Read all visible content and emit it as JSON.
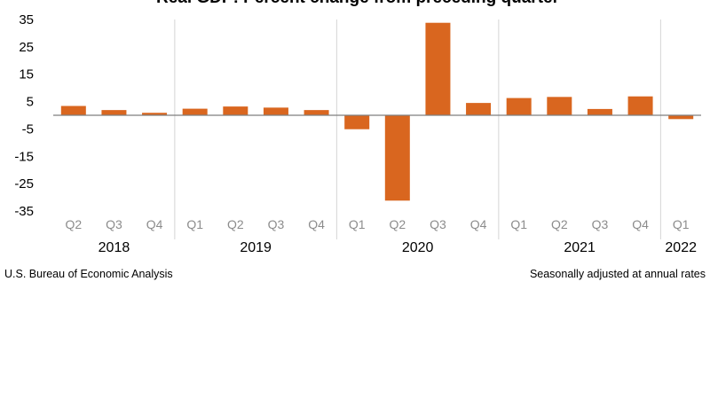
{
  "chart_data": {
    "type": "bar",
    "title": "Real GDP: Percent change from preceding quarter",
    "categories": [
      "Q2",
      "Q3",
      "Q4",
      "Q1",
      "Q2",
      "Q3",
      "Q4",
      "Q1",
      "Q2",
      "Q3",
      "Q4",
      "Q1",
      "Q2",
      "Q3",
      "Q4",
      "Q1"
    ],
    "years": [
      {
        "label": "2018",
        "start": 0,
        "end": 2
      },
      {
        "label": "2019",
        "start": 3,
        "end": 6
      },
      {
        "label": "2020",
        "start": 7,
        "end": 10
      },
      {
        "label": "2021",
        "start": 11,
        "end": 14
      },
      {
        "label": "2022",
        "start": 15,
        "end": 15
      }
    ],
    "values": [
      3.4,
      1.9,
      0.9,
      2.4,
      3.2,
      2.8,
      1.9,
      -5.1,
      -31.2,
      33.8,
      4.5,
      6.3,
      6.7,
      2.3,
      6.9,
      -1.4
    ],
    "yticks": [
      35,
      25,
      15,
      5,
      -5,
      -15,
      -25,
      -35
    ],
    "ylim": [
      -35,
      35
    ],
    "bar_color": "#d9661f",
    "source": "U.S. Bureau of Economic Analysis",
    "footnote": "Seasonally adjusted at annual rates"
  }
}
